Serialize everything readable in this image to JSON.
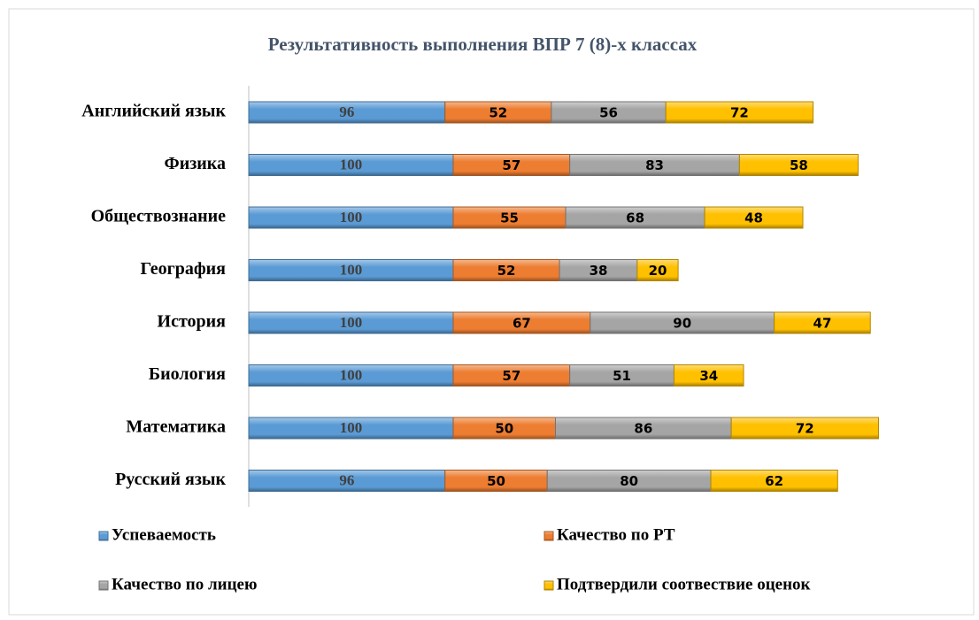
{
  "chart_data": {
    "type": "stacked-bar",
    "orientation": "horizontal",
    "title": "Результативность выполнения ВПР 7 (8)-х классах",
    "categories": [
      "Английский язык",
      "Физика",
      "Обществознание",
      "География",
      "История",
      "Биология",
      "Математика",
      "Русский язык"
    ],
    "series": [
      {
        "name": "Успеваемость",
        "color": "#5b9bd5",
        "values": [
          96,
          100,
          100,
          100,
          100,
          100,
          100,
          96
        ]
      },
      {
        "name": "Качество по  РТ",
        "color": "#ed7d31",
        "values": [
          52,
          57,
          55,
          52,
          67,
          57,
          50,
          50
        ]
      },
      {
        "name": "Качество по лицею",
        "color": "#a5a5a5",
        "values": [
          56,
          83,
          68,
          38,
          90,
          51,
          86,
          80
        ]
      },
      {
        "name": "Подтвердили соотвествие оценок",
        "color": "#ffc000",
        "values": [
          72,
          58,
          48,
          20,
          47,
          34,
          72,
          62
        ]
      }
    ],
    "legend": "bottom"
  }
}
